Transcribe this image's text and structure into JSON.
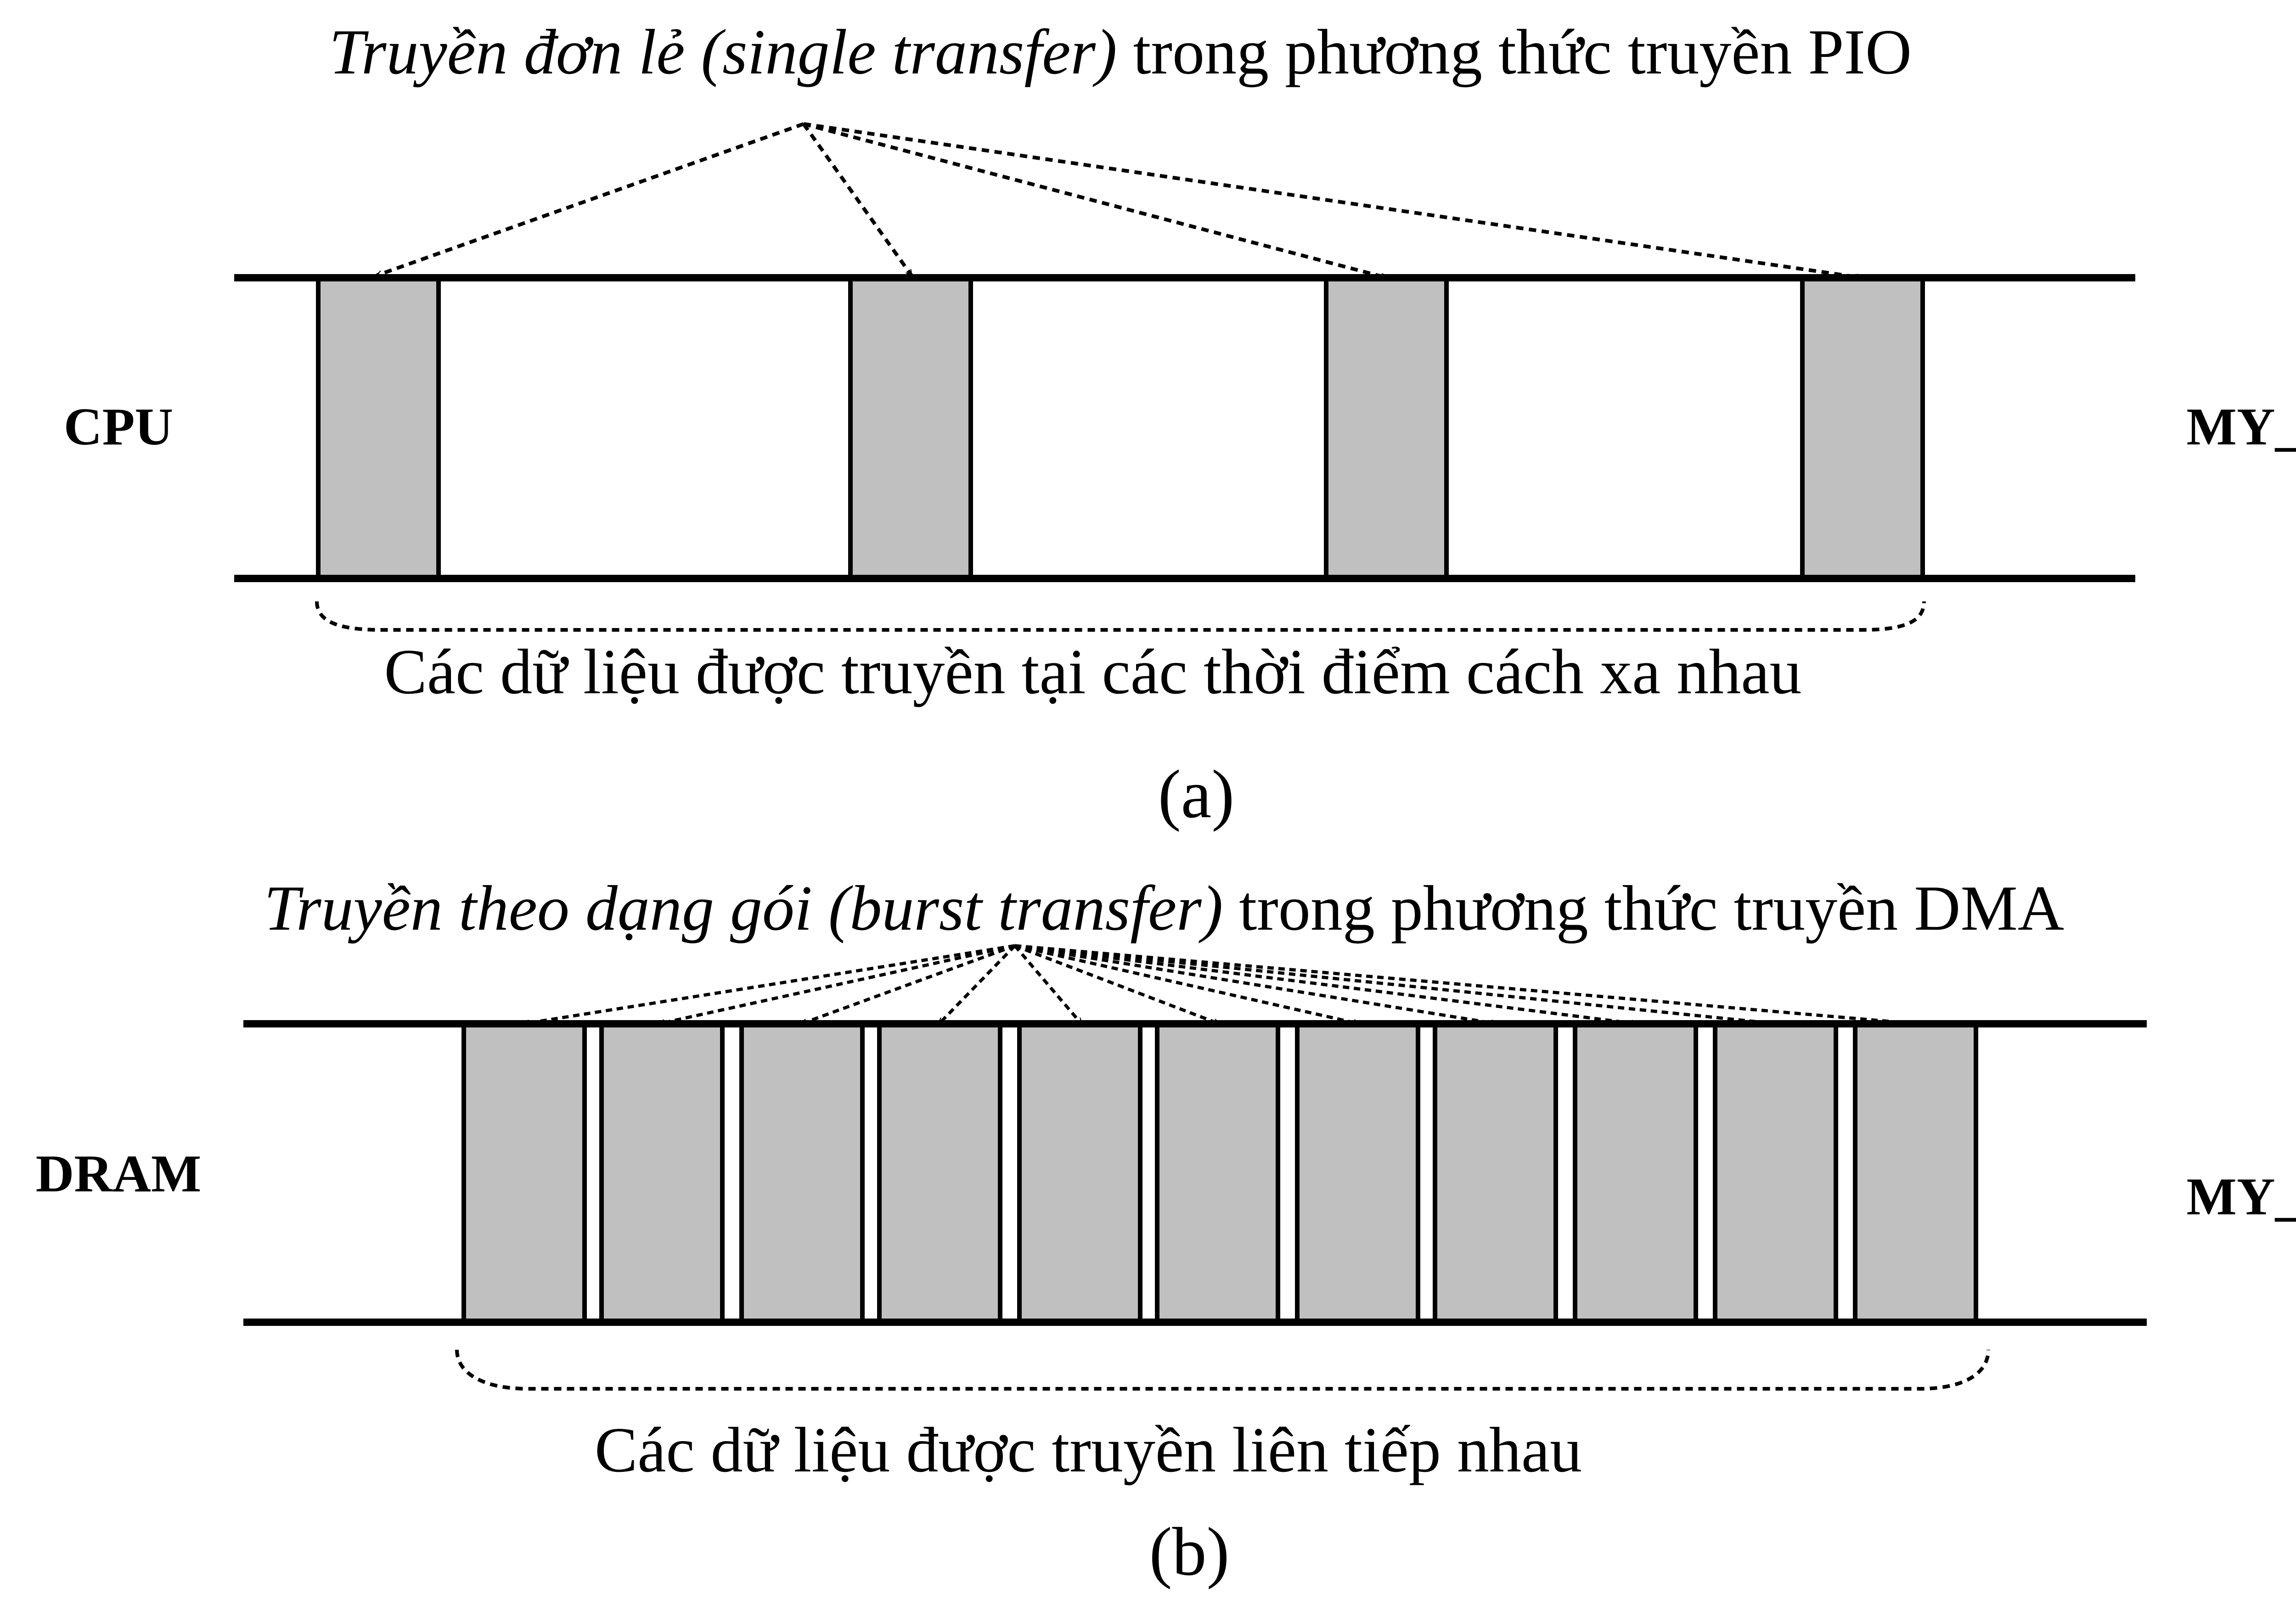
{
  "panel_a": {
    "title_italic": "Truyền đơn lẻ (single transfer)",
    "title_rest": " trong phương thức truyền PIO",
    "left_label": "CPU",
    "right_label": "MY_IP",
    "brace_caption": "Các dữ liệu được truyền tại các thời điểm cách xa nhau",
    "panel_label": "(a)",
    "transfer_count": 4
  },
  "panel_b": {
    "title_italic": "Truyền theo dạng gói (burst transfer)",
    "title_rest": " trong phương thức truyền DMA",
    "left_label": "DRAM",
    "right_label": "MY_IP",
    "brace_caption": "Các dữ liệu được truyền liên tiếp nhau",
    "panel_label": "(b)",
    "transfer_count": 11
  },
  "colors": {
    "block_fill": "#c0c0c0",
    "line": "#000000",
    "background": "#ffffff"
  }
}
